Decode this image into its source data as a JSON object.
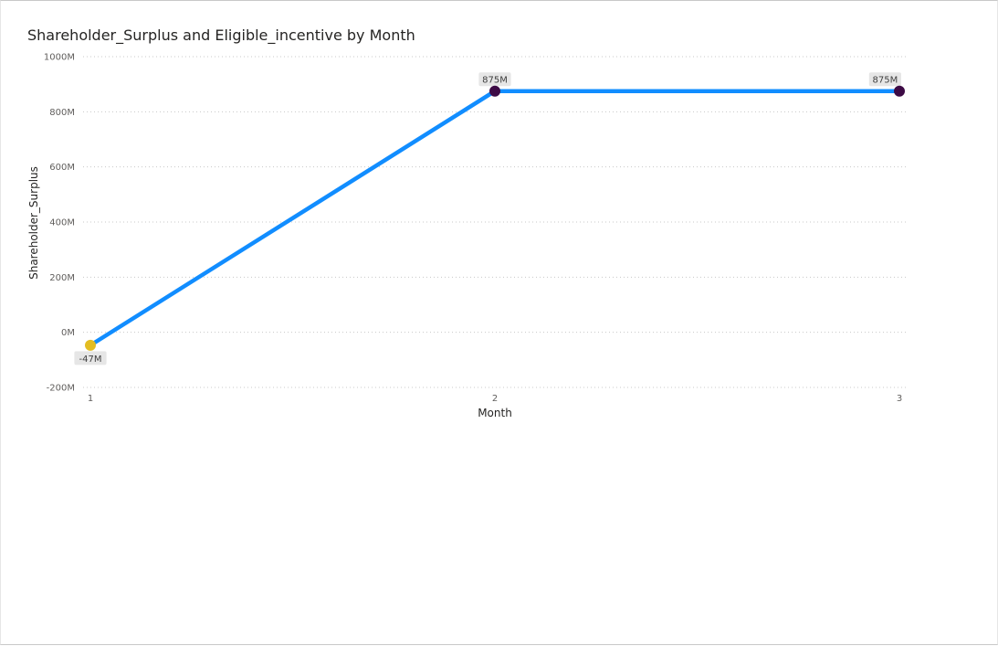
{
  "visual": {
    "title": "Shareholder_Surplus and Eligible_incentive by Month"
  },
  "chart_data": {
    "type": "line",
    "title": "Shareholder_Surplus and Eligible_incentive by Month",
    "xlabel": "Month",
    "ylabel": "Shareholder_Surplus",
    "x": [
      1,
      2,
      3
    ],
    "x_tick_labels": [
      "1",
      "2",
      "3"
    ],
    "ylim": [
      -200,
      1000
    ],
    "y_unit": "M",
    "y_ticks": [
      -200,
      0,
      200,
      400,
      600,
      800,
      1000
    ],
    "y_tick_labels": [
      "-200M",
      "0M",
      "200M",
      "400M",
      "600M",
      "800M",
      "1000M"
    ],
    "grid": true,
    "series": [
      {
        "values": [
          -47,
          875,
          875
        ],
        "data_labels": [
          "-47M",
          "875M",
          "875M"
        ],
        "color": "#118DFF",
        "marker_colors": [
          "#E3BD22",
          "#3D0A45",
          "#3D0A45"
        ]
      }
    ]
  }
}
